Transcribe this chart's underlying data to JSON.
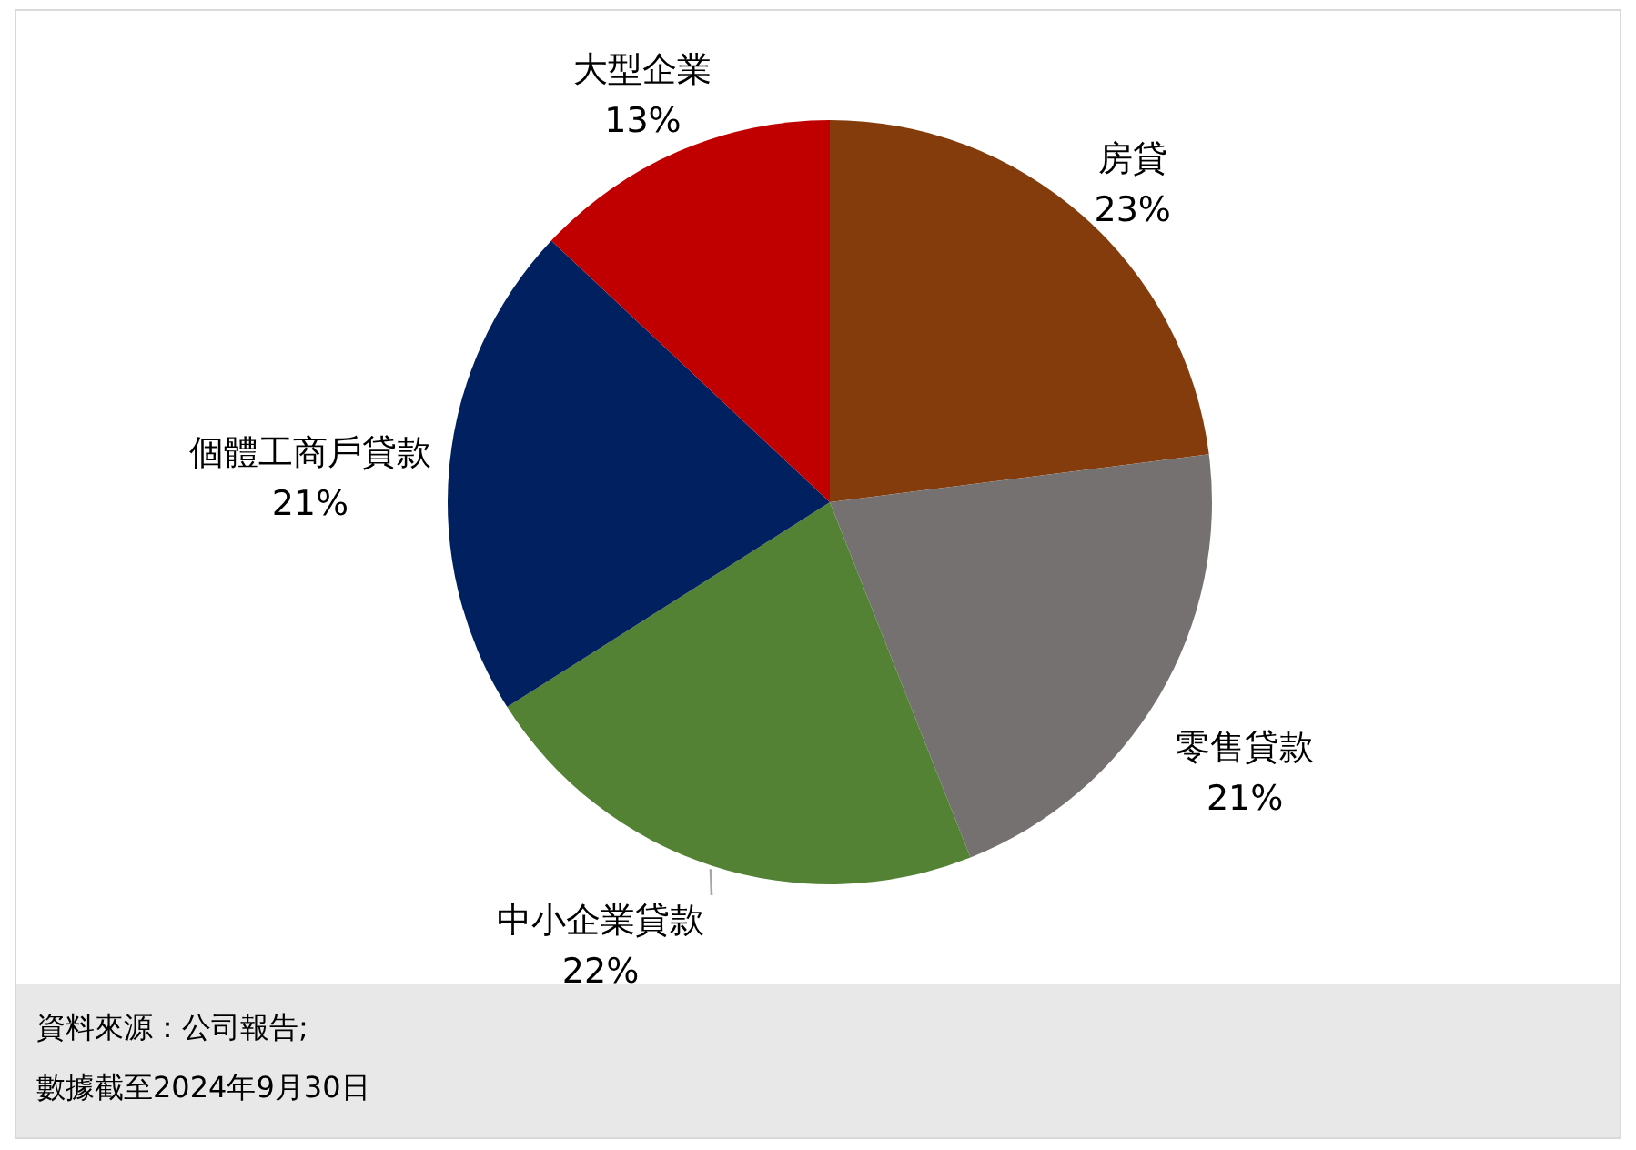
{
  "chart_data": {
    "type": "pie",
    "categories": [
      "房貸",
      "零售貸款",
      "中小企業貸款",
      "個體工商戶貸款",
      "大型企業"
    ],
    "values": [
      23,
      21,
      22,
      21,
      13
    ],
    "colors": [
      "#843c0c",
      "#767171",
      "#548235",
      "#002060",
      "#c00000"
    ],
    "value_labels": [
      "23%",
      "21%",
      "22%",
      "21%",
      "13%"
    ],
    "annotations": [
      "資料來源：公司報告;",
      "數據截至2024年9月30日"
    ]
  }
}
